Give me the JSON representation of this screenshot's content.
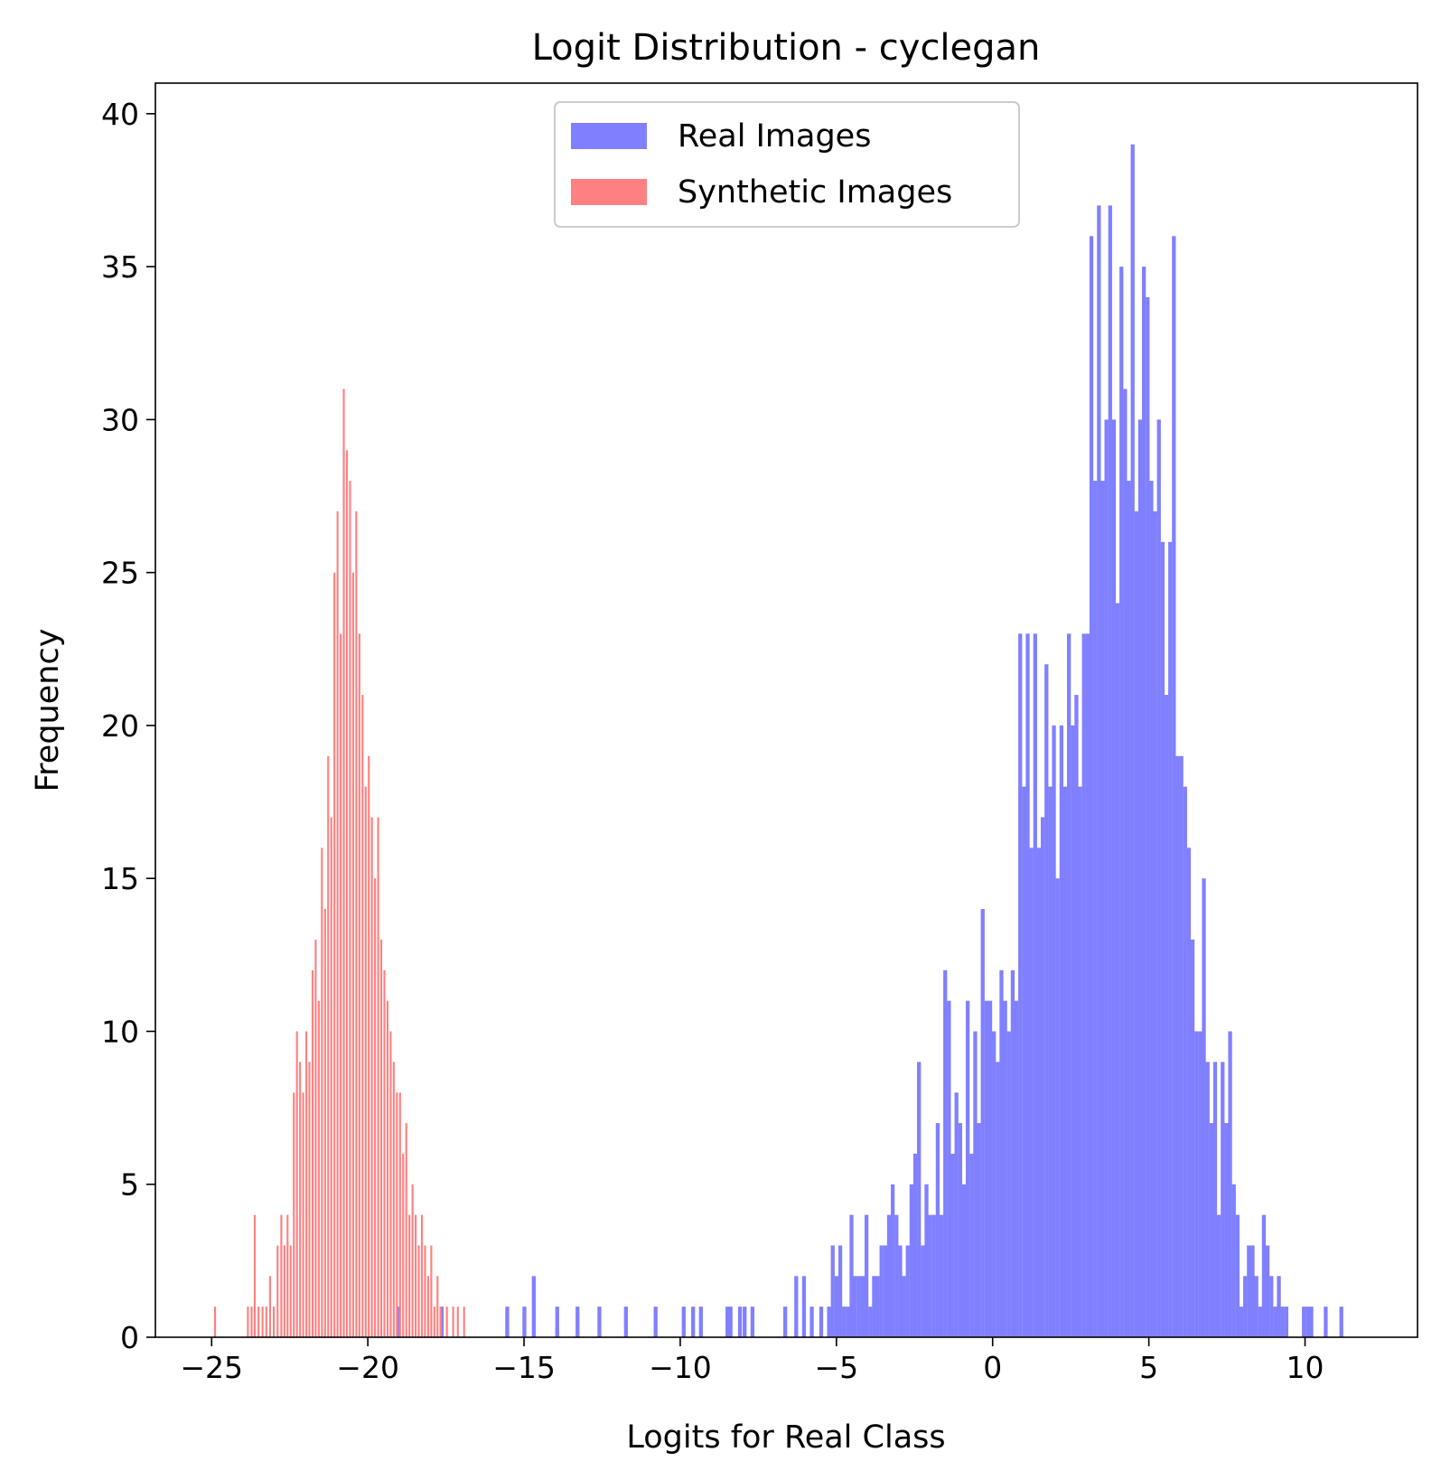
{
  "chart_data": {
    "type": "bar",
    "title": "Logit Distribution - cyclegan",
    "xlabel": "Logits for Real Class",
    "ylabel": "Frequency",
    "xlim": [
      -26.8,
      13.6
    ],
    "ylim": [
      0,
      41
    ],
    "xticks": [
      -25,
      -20,
      -15,
      -10,
      -5,
      0,
      5,
      10
    ],
    "xtick_labels": [
      "−25",
      "−20",
      "−15",
      "−10",
      "−5",
      "0",
      "5",
      "10"
    ],
    "yticks": [
      0,
      5,
      10,
      15,
      20,
      25,
      30,
      35,
      40
    ],
    "ytick_labels": [
      "0",
      "5",
      "10",
      "15",
      "20",
      "25",
      "30",
      "35",
      "40"
    ],
    "grid": false,
    "legend_position": "top-center",
    "series": [
      {
        "name": "Real Images",
        "color": "#8080ff",
        "bin_width": 0.124,
        "bins": [
          [
            -19.07,
            1
          ],
          [
            -17.7,
            1
          ],
          [
            -15.6,
            1
          ],
          [
            -15.05,
            1
          ],
          [
            -14.75,
            2
          ],
          [
            -14.0,
            1
          ],
          [
            -13.35,
            1
          ],
          [
            -12.65,
            1
          ],
          [
            -11.8,
            1
          ],
          [
            -10.85,
            1
          ],
          [
            -9.95,
            1
          ],
          [
            -9.65,
            1
          ],
          [
            -9.4,
            1
          ],
          [
            -8.55,
            1
          ],
          [
            -8.45,
            1
          ],
          [
            -8.15,
            1
          ],
          [
            -8.0,
            1
          ],
          [
            -7.75,
            1
          ],
          [
            -6.7,
            1
          ],
          [
            -6.35,
            2
          ],
          [
            -6.1,
            2
          ],
          [
            -5.85,
            1
          ],
          [
            -5.55,
            1
          ],
          [
            -5.3,
            1
          ],
          [
            -5.18,
            3
          ],
          [
            -5.06,
            2
          ],
          [
            -4.94,
            3
          ],
          [
            -4.82,
            1
          ],
          [
            -4.7,
            1
          ],
          [
            -4.58,
            4
          ],
          [
            -4.46,
            2
          ],
          [
            -4.34,
            2
          ],
          [
            -4.22,
            2
          ],
          [
            -4.1,
            4
          ],
          [
            -3.98,
            1
          ],
          [
            -3.86,
            2
          ],
          [
            -3.74,
            2
          ],
          [
            -3.62,
            3
          ],
          [
            -3.5,
            3
          ],
          [
            -3.38,
            4
          ],
          [
            -3.26,
            5
          ],
          [
            -3.14,
            4
          ],
          [
            -3.02,
            3
          ],
          [
            -2.9,
            2
          ],
          [
            -2.78,
            3
          ],
          [
            -2.66,
            5
          ],
          [
            -2.54,
            6
          ],
          [
            -2.42,
            9
          ],
          [
            -2.3,
            3
          ],
          [
            -2.18,
            5
          ],
          [
            -2.06,
            4
          ],
          [
            -1.94,
            4
          ],
          [
            -1.82,
            7
          ],
          [
            -1.7,
            4
          ],
          [
            -1.58,
            12
          ],
          [
            -1.46,
            11
          ],
          [
            -1.34,
            6
          ],
          [
            -1.22,
            8
          ],
          [
            -1.1,
            7
          ],
          [
            -0.98,
            5
          ],
          [
            -0.86,
            11
          ],
          [
            -0.74,
            6
          ],
          [
            -0.62,
            10
          ],
          [
            -0.5,
            7
          ],
          [
            -0.38,
            14
          ],
          [
            -0.26,
            11
          ],
          [
            -0.14,
            11
          ],
          [
            -0.02,
            10
          ],
          [
            0.1,
            9
          ],
          [
            0.22,
            12
          ],
          [
            0.34,
            11
          ],
          [
            0.46,
            10
          ],
          [
            0.58,
            12
          ],
          [
            0.7,
            11
          ],
          [
            0.82,
            23
          ],
          [
            0.94,
            18
          ],
          [
            1.06,
            23
          ],
          [
            1.18,
            16
          ],
          [
            1.3,
            23
          ],
          [
            1.42,
            16
          ],
          [
            1.54,
            17
          ],
          [
            1.66,
            22
          ],
          [
            1.78,
            18
          ],
          [
            1.9,
            20
          ],
          [
            2.02,
            15
          ],
          [
            2.14,
            20
          ],
          [
            2.26,
            18
          ],
          [
            2.38,
            23
          ],
          [
            2.5,
            20
          ],
          [
            2.62,
            21
          ],
          [
            2.74,
            18
          ],
          [
            2.86,
            23
          ],
          [
            2.98,
            23
          ],
          [
            3.1,
            36
          ],
          [
            3.22,
            28
          ],
          [
            3.34,
            37
          ],
          [
            3.46,
            28
          ],
          [
            3.58,
            30
          ],
          [
            3.7,
            37
          ],
          [
            3.82,
            30
          ],
          [
            3.94,
            24
          ],
          [
            4.06,
            35
          ],
          [
            4.18,
            31
          ],
          [
            4.3,
            28
          ],
          [
            4.42,
            39
          ],
          [
            4.54,
            27
          ],
          [
            4.66,
            30
          ],
          [
            4.78,
            35
          ],
          [
            4.9,
            34
          ],
          [
            5.02,
            28
          ],
          [
            5.14,
            27
          ],
          [
            5.26,
            30
          ],
          [
            5.38,
            26
          ],
          [
            5.5,
            21
          ],
          [
            5.62,
            26
          ],
          [
            5.74,
            36
          ],
          [
            5.86,
            19
          ],
          [
            5.98,
            19
          ],
          [
            6.1,
            18
          ],
          [
            6.22,
            16
          ],
          [
            6.34,
            13
          ],
          [
            6.46,
            10
          ],
          [
            6.58,
            10
          ],
          [
            6.7,
            15
          ],
          [
            6.82,
            9
          ],
          [
            6.94,
            7
          ],
          [
            7.06,
            9
          ],
          [
            7.18,
            4
          ],
          [
            7.3,
            9
          ],
          [
            7.42,
            7
          ],
          [
            7.54,
            10
          ],
          [
            7.66,
            5
          ],
          [
            7.78,
            4
          ],
          [
            7.9,
            1
          ],
          [
            8.02,
            2
          ],
          [
            8.14,
            3
          ],
          [
            8.26,
            3
          ],
          [
            8.38,
            2
          ],
          [
            8.5,
            1
          ],
          [
            8.62,
            4
          ],
          [
            8.74,
            3
          ],
          [
            8.86,
            2
          ],
          [
            8.98,
            1
          ],
          [
            9.1,
            2
          ],
          [
            9.22,
            1
          ],
          [
            9.34,
            1
          ],
          [
            9.9,
            1
          ],
          [
            10.02,
            1
          ],
          [
            10.14,
            1
          ],
          [
            10.6,
            1
          ],
          [
            11.1,
            1
          ]
        ]
      },
      {
        "name": "Synthetic Images",
        "color": "#ff8080",
        "bin_width": 0.062,
        "bins": [
          [
            -24.92,
            1
          ],
          [
            -23.87,
            1
          ],
          [
            -23.75,
            1
          ],
          [
            -23.65,
            4
          ],
          [
            -23.53,
            1
          ],
          [
            -23.4,
            1
          ],
          [
            -23.28,
            1
          ],
          [
            -23.16,
            2
          ],
          [
            -23.04,
            1
          ],
          [
            -22.92,
            3
          ],
          [
            -22.8,
            4
          ],
          [
            -22.7,
            3
          ],
          [
            -22.6,
            4
          ],
          [
            -22.5,
            3
          ],
          [
            -22.4,
            8
          ],
          [
            -22.3,
            10
          ],
          [
            -22.2,
            9
          ],
          [
            -22.1,
            8
          ],
          [
            -22.0,
            10
          ],
          [
            -21.9,
            9
          ],
          [
            -21.8,
            12
          ],
          [
            -21.7,
            13
          ],
          [
            -21.6,
            11
          ],
          [
            -21.5,
            16
          ],
          [
            -21.4,
            14
          ],
          [
            -21.3,
            19
          ],
          [
            -21.2,
            17
          ],
          [
            -21.1,
            25
          ],
          [
            -21.0,
            27
          ],
          [
            -20.9,
            23
          ],
          [
            -20.8,
            31
          ],
          [
            -20.7,
            29
          ],
          [
            -20.6,
            28
          ],
          [
            -20.5,
            25
          ],
          [
            -20.4,
            27
          ],
          [
            -20.3,
            23
          ],
          [
            -20.2,
            21
          ],
          [
            -20.1,
            18
          ],
          [
            -20.0,
            19
          ],
          [
            -19.9,
            17
          ],
          [
            -19.8,
            15
          ],
          [
            -19.7,
            17
          ],
          [
            -19.6,
            13
          ],
          [
            -19.5,
            12
          ],
          [
            -19.4,
            11
          ],
          [
            -19.3,
            10
          ],
          [
            -19.2,
            9
          ],
          [
            -19.1,
            8
          ],
          [
            -19.0,
            8
          ],
          [
            -18.9,
            6
          ],
          [
            -18.8,
            7
          ],
          [
            -18.7,
            4
          ],
          [
            -18.6,
            5
          ],
          [
            -18.5,
            4
          ],
          [
            -18.4,
            3
          ],
          [
            -18.3,
            4
          ],
          [
            -18.2,
            3
          ],
          [
            -18.1,
            2
          ],
          [
            -18.0,
            3
          ],
          [
            -17.9,
            1
          ],
          [
            -17.8,
            2
          ],
          [
            -17.7,
            1
          ],
          [
            -17.5,
            1
          ],
          [
            -17.3,
            1
          ],
          [
            -17.15,
            1
          ],
          [
            -16.95,
            1
          ]
        ]
      }
    ]
  }
}
